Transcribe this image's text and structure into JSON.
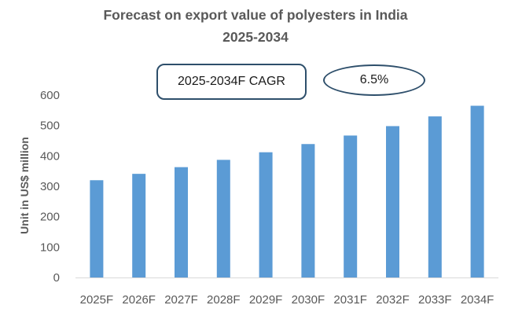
{
  "chart_data": {
    "type": "bar",
    "title_lines": [
      "Forecast on export value of polyesters in India",
      "2025-2034"
    ],
    "categories": [
      "2025F",
      "2026F",
      "2027F",
      "2028F",
      "2029F",
      "2030F",
      "2031F",
      "2032F",
      "2033F",
      "2034F"
    ],
    "values": [
      320,
      341,
      363,
      387,
      412,
      439,
      467,
      498,
      530,
      565
    ],
    "ylabel": "Unit in US$ million",
    "ylim": [
      0,
      600
    ],
    "yticks": [
      0,
      100,
      200,
      300,
      400,
      500,
      600
    ],
    "grid": false,
    "legend": "none",
    "bar_color": "#5b9bd5",
    "callouts": {
      "cagr_label": "2025-2034F CAGR",
      "cagr_value": "6.5%"
    }
  }
}
